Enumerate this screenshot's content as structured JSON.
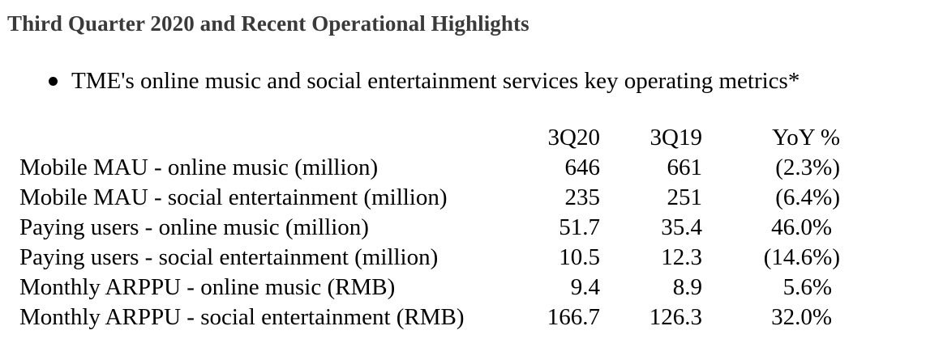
{
  "heading": "Third Quarter 2020 and Recent Operational Highlights",
  "bullet": "TME's online music and social entertainment services key operating metrics*",
  "table": {
    "headers": [
      "",
      "3Q20",
      "3Q19",
      "YoY %"
    ],
    "rows": [
      {
        "label": "Mobile MAU - online music (million)",
        "q3_2020": "646",
        "q3_2019": "661",
        "yoy": "(2.3%)"
      },
      {
        "label": "Mobile MAU - social entertainment (million)",
        "q3_2020": "235",
        "q3_2019": "251",
        "yoy": "(6.4%)"
      },
      {
        "label": "Paying users - online music (million)",
        "q3_2020": "51.7",
        "q3_2019": "35.4",
        "yoy": "46.0%"
      },
      {
        "label": "Paying users - social entertainment (million)",
        "q3_2020": "10.5",
        "q3_2019": "12.3",
        "yoy": "(14.6%)"
      },
      {
        "label": "Monthly ARPPU - online music (RMB)",
        "q3_2020": "9.4",
        "q3_2019": "8.9",
        "yoy": "5.6%"
      },
      {
        "label": "Monthly ARPPU - social entertainment (RMB)",
        "q3_2020": "166.7",
        "q3_2019": "126.3",
        "yoy": "32.0%"
      }
    ]
  }
}
